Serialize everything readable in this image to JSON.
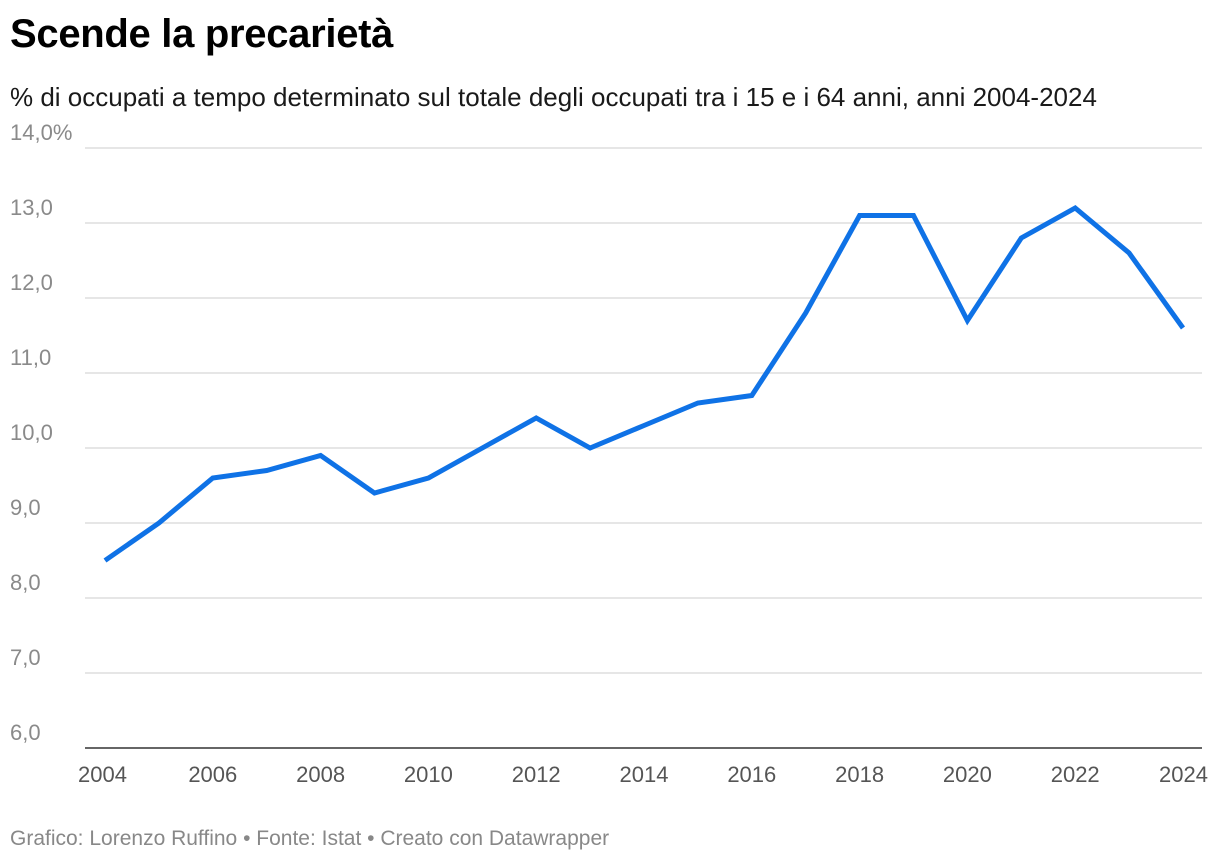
{
  "title": "Scende la precarietà",
  "subtitle": "% di occupati a tempo determinato sul totale degli occupati tra i 15 e i 64 anni, anni 2004-2024",
  "footer": "Grafico: Lorenzo Ruffino • Fonte: Istat • Creato con Datawrapper",
  "colors": {
    "line": "#0f72e6",
    "grid": "#dddddd",
    "axis": "#333333"
  },
  "chart_data": {
    "type": "line",
    "title": "Scende la precarietà",
    "subtitle": "% di occupati a tempo determinato sul totale degli occupati tra i 15 e i 64 anni, anni 2004-2024",
    "xlabel": "",
    "ylabel": "",
    "x": [
      2004,
      2005,
      2006,
      2007,
      2008,
      2009,
      2010,
      2011,
      2012,
      2013,
      2014,
      2015,
      2016,
      2017,
      2018,
      2019,
      2020,
      2021,
      2022,
      2023,
      2024
    ],
    "series": [
      {
        "values": [
          8.5,
          9.0,
          9.6,
          9.7,
          9.9,
          9.4,
          9.6,
          10.0,
          10.4,
          10.0,
          10.3,
          10.6,
          10.7,
          11.8,
          13.1,
          13.1,
          11.7,
          12.8,
          13.2,
          12.6,
          11.6
        ]
      }
    ],
    "ylim": [
      6,
      14
    ],
    "yticks": [
      6,
      7,
      8,
      9,
      10,
      11,
      12,
      13,
      14
    ],
    "ytick_labels": [
      "6,0",
      "7,0",
      "8,0",
      "9,0",
      "10,0",
      "11,0",
      "12,0",
      "13,0",
      "14,0%"
    ],
    "xticks": [
      "2004",
      "2006",
      "2008",
      "2010",
      "2012",
      "2014",
      "2016",
      "2018",
      "2020",
      "2022",
      "2024"
    ],
    "grid": true,
    "legend": "none"
  }
}
